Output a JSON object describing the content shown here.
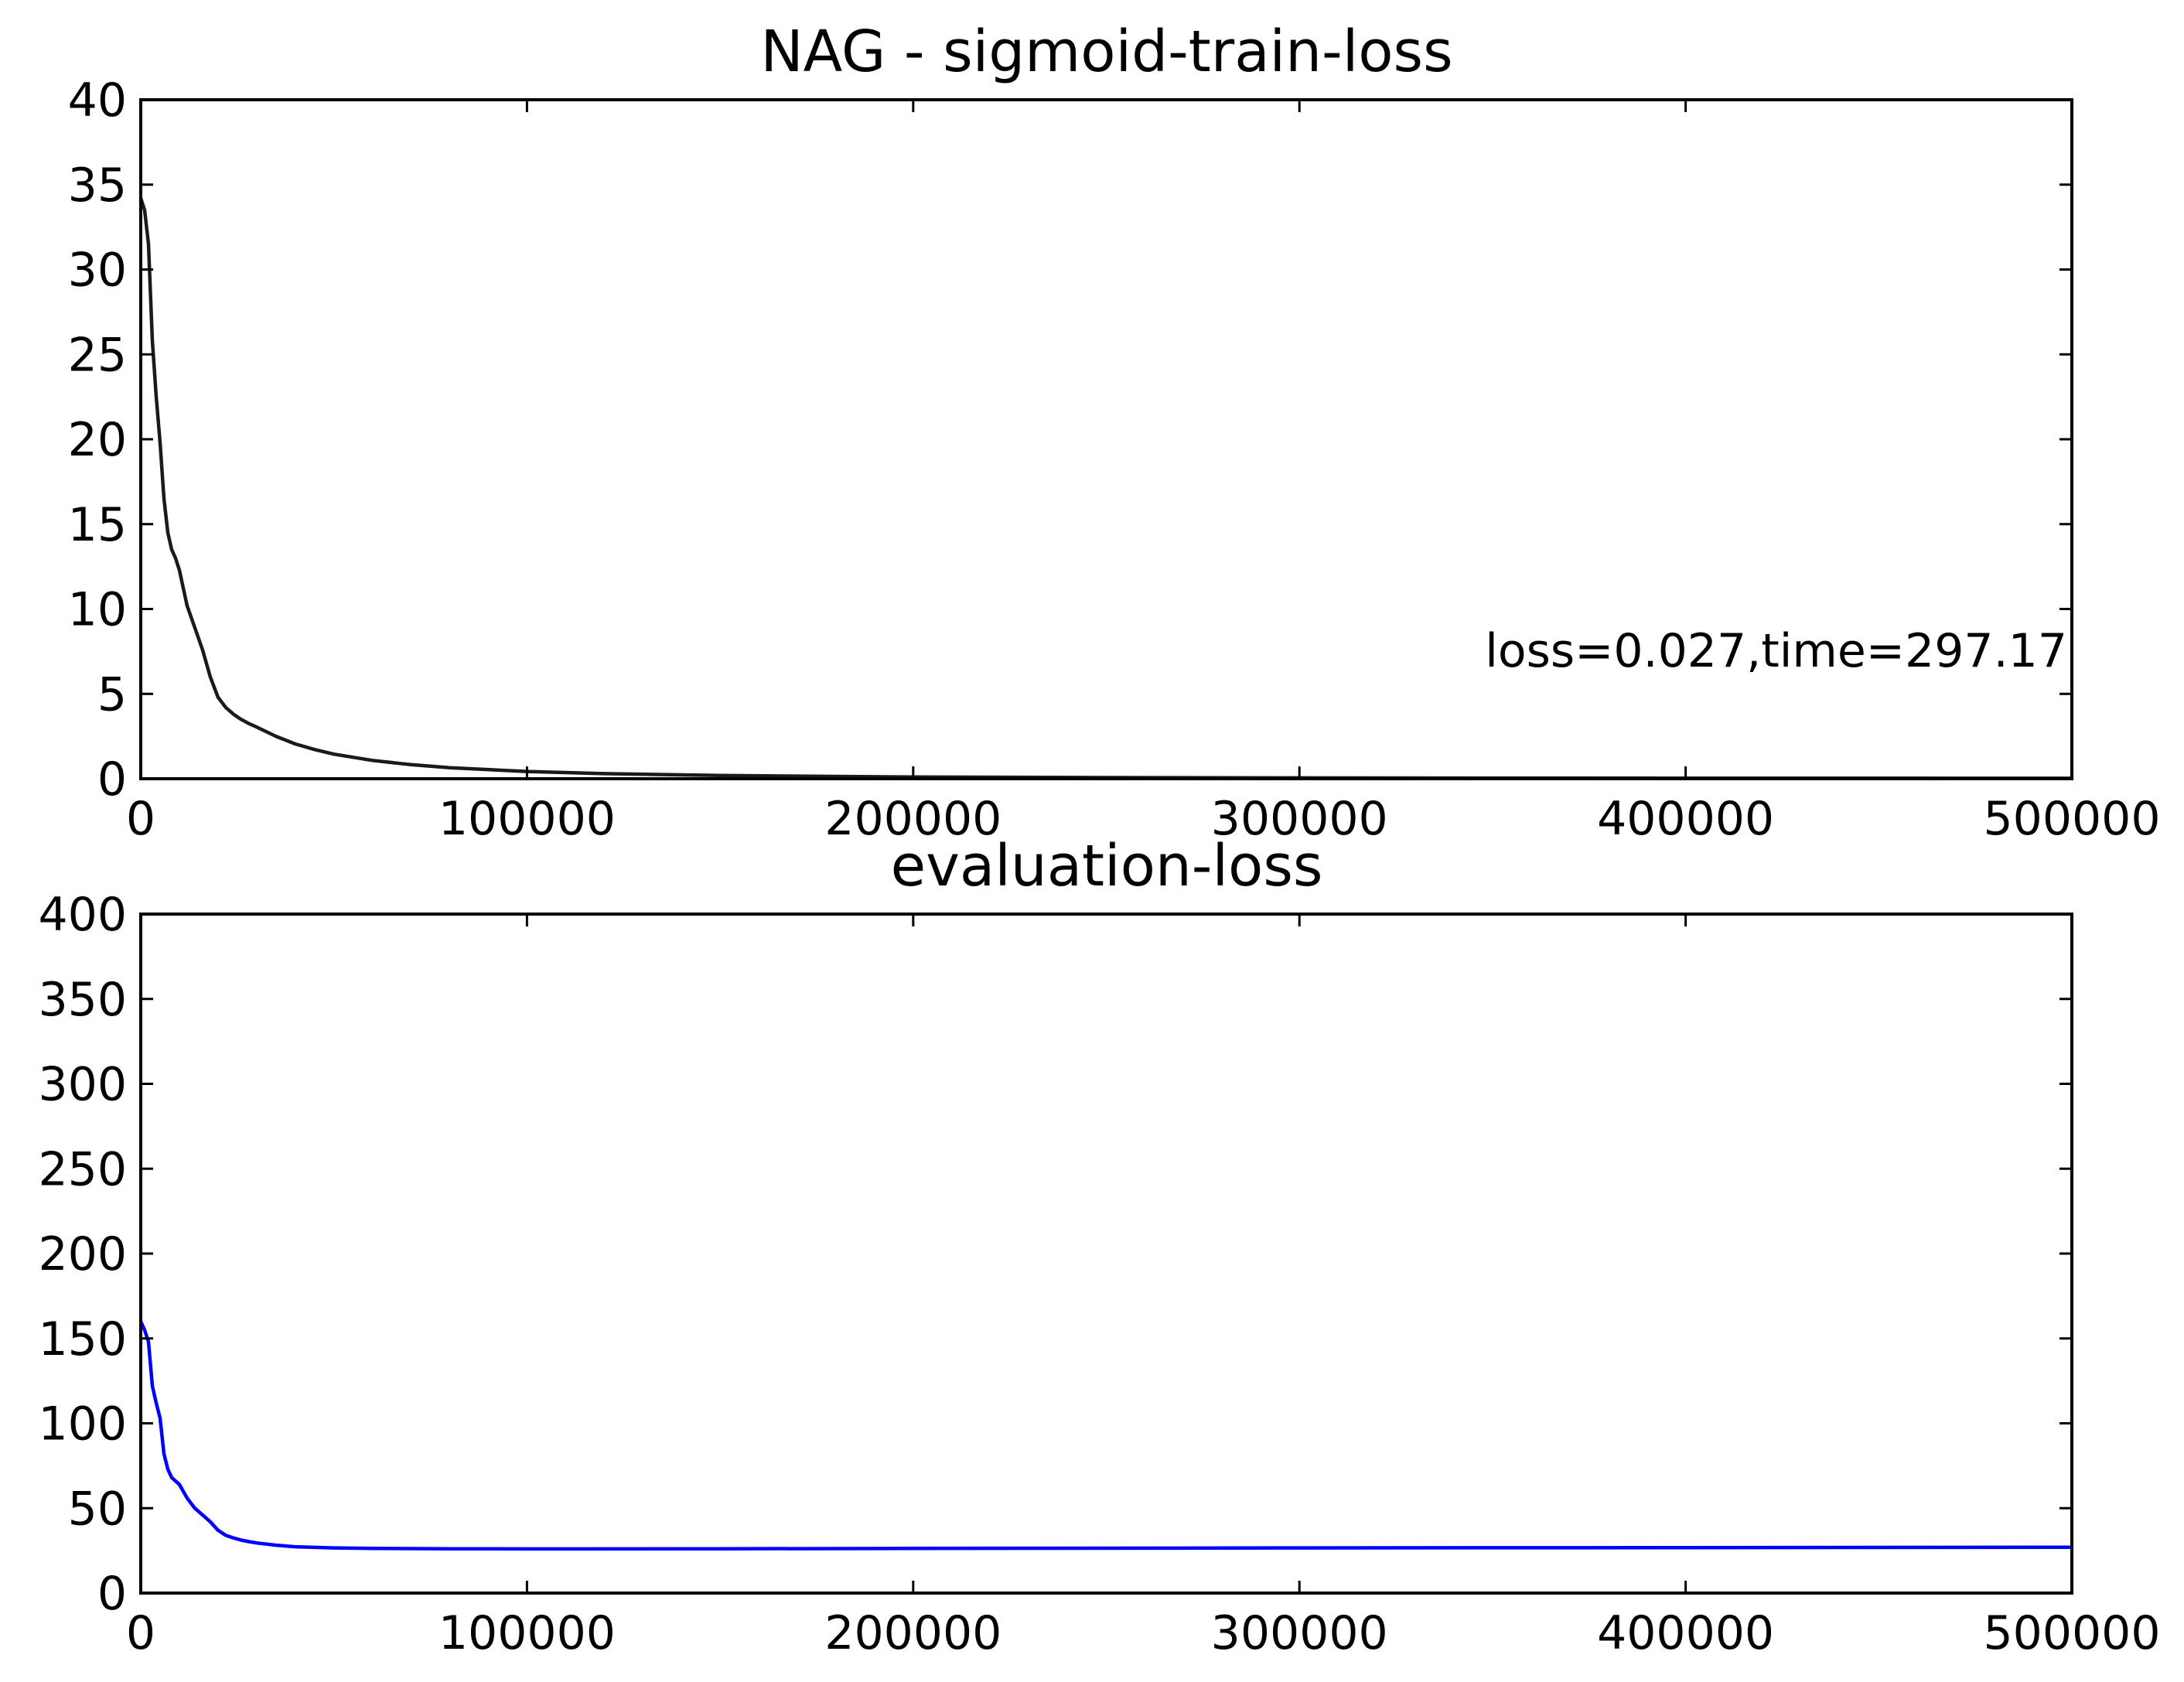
{
  "chart_data": [
    {
      "type": "line",
      "title": "NAG - sigmoid-train-loss",
      "xlabel": "",
      "ylabel": "",
      "xlim": [
        0,
        500000
      ],
      "ylim": [
        0,
        40
      ],
      "xticks": [
        0,
        100000,
        200000,
        300000,
        400000,
        500000
      ],
      "yticks": [
        0,
        5,
        10,
        15,
        20,
        25,
        30,
        35,
        40
      ],
      "grid": false,
      "annotation": "loss=0.027,time=297.17",
      "series": [
        {
          "color": "#1a1a1a",
          "x": [
            0,
            1000,
            2000,
            3000,
            4000,
            5000,
            6000,
            7000,
            8000,
            9000,
            10000,
            12000,
            14000,
            16000,
            18000,
            20000,
            22000,
            24000,
            26000,
            28000,
            30000,
            35000,
            40000,
            45000,
            50000,
            60000,
            70000,
            80000,
            100000,
            120000,
            150000,
            200000,
            250000,
            300000,
            350000,
            400000,
            450000,
            500000
          ],
          "y": [
            34.2,
            33.5,
            31.5,
            25.8,
            22.5,
            19.8,
            16.5,
            14.5,
            13.5,
            13.0,
            12.3,
            10.2,
            8.9,
            7.6,
            6.0,
            4.8,
            4.2,
            3.8,
            3.5,
            3.25,
            3.05,
            2.5,
            2.05,
            1.72,
            1.45,
            1.08,
            0.83,
            0.65,
            0.43,
            0.3,
            0.19,
            0.1,
            0.07,
            0.05,
            0.04,
            0.035,
            0.03,
            0.027
          ]
        }
      ]
    },
    {
      "type": "line",
      "title": "evaluation-loss",
      "xlabel": "",
      "ylabel": "",
      "xlim": [
        0,
        500000
      ],
      "ylim": [
        0,
        400
      ],
      "xticks": [
        0,
        100000,
        200000,
        300000,
        400000,
        500000
      ],
      "yticks": [
        0,
        50,
        100,
        150,
        200,
        250,
        300,
        350,
        400
      ],
      "grid": false,
      "series": [
        {
          "color": "#0000ff",
          "x": [
            0,
            1000,
            2000,
            3000,
            4000,
            5000,
            6000,
            7000,
            8000,
            9000,
            10000,
            12000,
            14000,
            16000,
            18000,
            20000,
            22000,
            24000,
            26000,
            28000,
            30000,
            35000,
            40000,
            50000,
            60000,
            80000,
            100000,
            150000,
            200000,
            300000,
            400000,
            500000
          ],
          "y": [
            160,
            155,
            148,
            122,
            112,
            103,
            82,
            73,
            68,
            66,
            64,
            56,
            50,
            46,
            42,
            37,
            34,
            32.5,
            31.2,
            30.3,
            29.5,
            28.2,
            27.3,
            26.6,
            26.3,
            26.1,
            26.0,
            26.1,
            26.3,
            26.6,
            26.8,
            27.0
          ]
        }
      ]
    }
  ]
}
